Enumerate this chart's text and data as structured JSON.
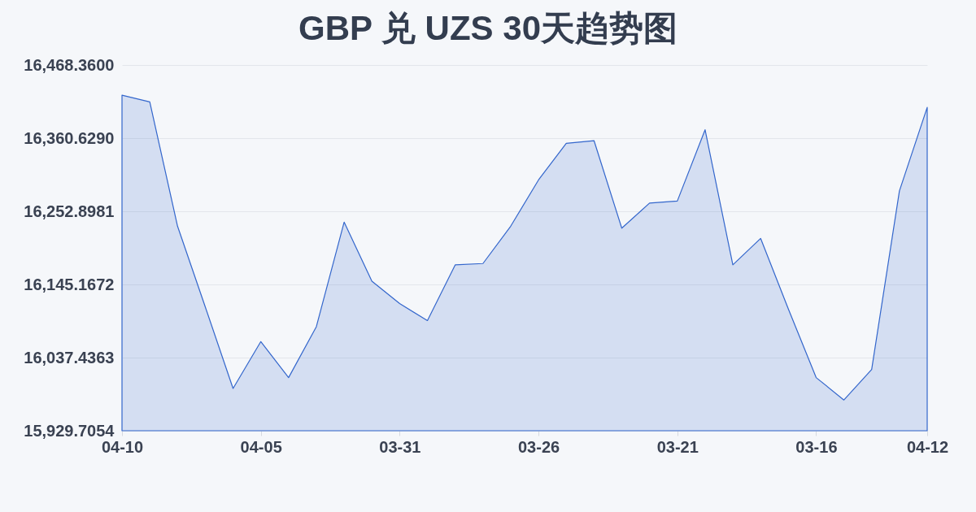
{
  "chart_data": {
    "type": "area",
    "title": "GBP 兑 UZS 30天趋势图",
    "categories": [
      "04-10",
      null,
      null,
      null,
      null,
      "04-05",
      null,
      null,
      null,
      null,
      "03-31",
      null,
      null,
      null,
      null,
      "03-26",
      null,
      null,
      null,
      null,
      "03-21",
      null,
      null,
      null,
      null,
      "03-16",
      null,
      null,
      null,
      "04-12"
    ],
    "series": [
      {
        "color": "#3366cc",
        "values": [
          16424,
          16414,
          16231,
          16112,
          15992,
          16061,
          16008,
          16083,
          16237,
          16150,
          16117,
          16092,
          16174,
          16176,
          16231,
          16299,
          16353,
          16357,
          16228,
          16265,
          16268,
          16373,
          16174,
          16213,
          16109,
          16008,
          15975,
          16020,
          16283,
          16406
        ]
      }
    ],
    "ylim": [
      15929.7054,
      16468.36
    ],
    "yticks": [
      {
        "value": 15929.7054,
        "label": "15,929.7054"
      },
      {
        "value": 16037.4363,
        "label": "16,037.4363"
      },
      {
        "value": 16145.1672,
        "label": "16,145.1672"
      },
      {
        "value": 16252.8981,
        "label": "16,252.8981"
      },
      {
        "value": 16360.629,
        "label": "16,360.6290"
      },
      {
        "value": 16468.36,
        "label": "16,468.3600"
      }
    ],
    "grid": "y"
  }
}
